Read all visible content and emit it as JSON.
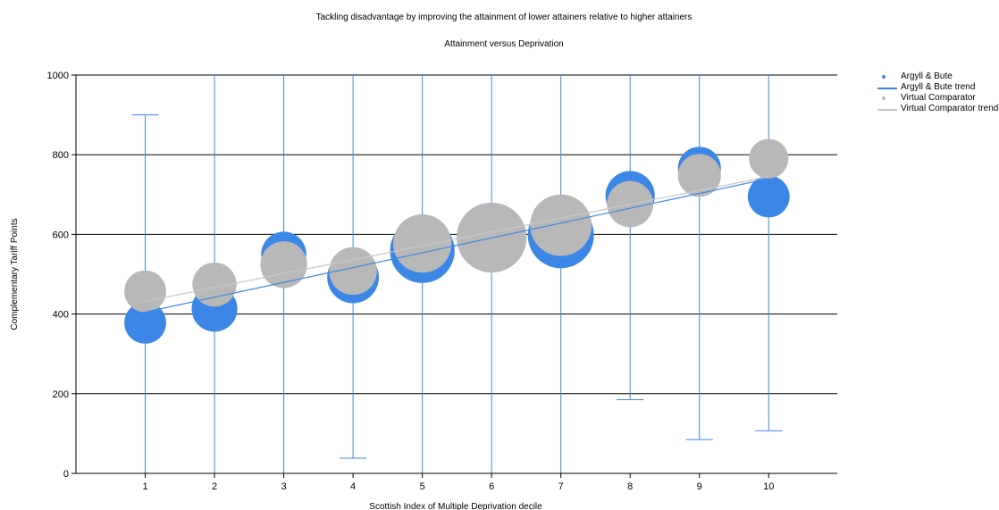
{
  "chart_data": {
    "type": "scatter",
    "title": "Tackling disadvantage by improving the attainment of lower attainers relative to higher attainers",
    "subtitle": "Attainment versus Deprivation",
    "xlabel": "Scottish Index of Multiple Deprivation decile",
    "ylabel": "Complementary Tariff Points",
    "x_ticks": [
      1,
      2,
      3,
      4,
      5,
      6,
      7,
      8,
      9,
      10
    ],
    "xlim": [
      0,
      10.99
    ],
    "ylim": [
      0,
      1000
    ],
    "y_ticks": [
      0,
      200,
      400,
      600,
      800,
      1000
    ],
    "grid": "horizontal",
    "legend_position": "top-right",
    "series": [
      {
        "name": "Argyll & Bute",
        "color": "#3c87e6",
        "points": [
          {
            "x": 1,
            "y": 378,
            "size": 0.36
          },
          {
            "x": 2,
            "y": 413,
            "size": 0.43
          },
          {
            "x": 3,
            "y": 550,
            "size": 0.42
          },
          {
            "x": 4,
            "y": 492,
            "size": 0.55
          },
          {
            "x": 5,
            "y": 559,
            "size": 0.86
          },
          {
            "x": 6,
            "y": 592,
            "size": 1.0
          },
          {
            "x": 7,
            "y": 598,
            "size": 0.9
          },
          {
            "x": 8,
            "y": 697,
            "size": 0.5
          },
          {
            "x": 9,
            "y": 766,
            "size": 0.38
          },
          {
            "x": 10,
            "y": 695,
            "size": 0.36
          }
        ],
        "error_bars": [
          {
            "x": 1,
            "low": 0,
            "high": 900
          },
          {
            "x": 2,
            "low": 0,
            "high": 1000
          },
          {
            "x": 3,
            "low": 0,
            "high": 1000
          },
          {
            "x": 4,
            "low": 38,
            "high": 1000
          },
          {
            "x": 5,
            "low": 0,
            "high": 1000
          },
          {
            "x": 6,
            "low": 0,
            "high": 1000
          },
          {
            "x": 7,
            "low": 0,
            "high": 1000
          },
          {
            "x": 8,
            "low": 185,
            "high": 1000
          },
          {
            "x": 9,
            "low": 85,
            "high": 1000
          },
          {
            "x": 10,
            "low": 107,
            "high": 1000
          }
        ]
      },
      {
        "name": "Argyll & Bute trend",
        "color": "#3c87e6",
        "kind": "trend",
        "start": {
          "x": 1,
          "y": 405
        },
        "end": {
          "x": 10,
          "y": 740
        }
      },
      {
        "name": "Virtual Comparator",
        "color": "#b8b8b8",
        "points": [
          {
            "x": 1,
            "y": 457,
            "size": 0.36
          },
          {
            "x": 2,
            "y": 474,
            "size": 0.4
          },
          {
            "x": 3,
            "y": 524,
            "size": 0.45
          },
          {
            "x": 4,
            "y": 508,
            "size": 0.47
          },
          {
            "x": 5,
            "y": 577,
            "size": 0.7
          },
          {
            "x": 6,
            "y": 592,
            "size": 1.0
          },
          {
            "x": 7,
            "y": 623,
            "size": 0.78
          },
          {
            "x": 8,
            "y": 676,
            "size": 0.44
          },
          {
            "x": 9,
            "y": 748,
            "size": 0.38
          },
          {
            "x": 10,
            "y": 790,
            "size": 0.32
          }
        ]
      },
      {
        "name": "Virtual Comparator trend",
        "color": "#c8c8c8",
        "kind": "trend",
        "start": {
          "x": 1,
          "y": 432
        },
        "end": {
          "x": 10,
          "y": 745
        }
      }
    ]
  }
}
